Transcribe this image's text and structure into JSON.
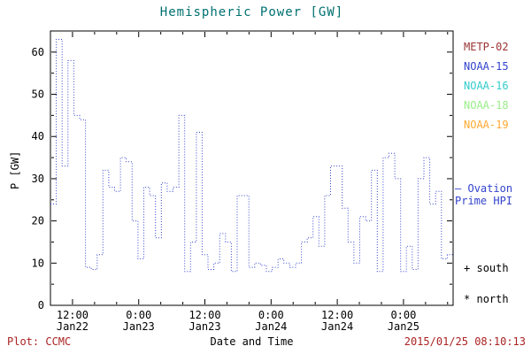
{
  "title_color": "#007070",
  "chart_data": {
    "type": "line",
    "title": "Hemispheric Power [GW]",
    "xlabel": "Date and Time",
    "ylabel": "P [GW]",
    "xlim": [
      0,
      73
    ],
    "ylim": [
      0,
      65
    ],
    "yticks": [
      0,
      10,
      20,
      30,
      40,
      50,
      60
    ],
    "xticks": [
      {
        "hour": 4,
        "time": "12:00",
        "date": "Jan22"
      },
      {
        "hour": 16,
        "time": "0:00",
        "date": "Jan23"
      },
      {
        "hour": 28,
        "time": "12:00",
        "date": "Jan23"
      },
      {
        "hour": 40,
        "time": "0:00",
        "date": "Jan24"
      },
      {
        "hour": 52,
        "time": "12:00",
        "date": "Jan24"
      },
      {
        "hour": 64,
        "time": "0:00",
        "date": "Jan25"
      }
    ],
    "grid": false,
    "legend_position": "right",
    "series": [
      {
        "name": "Ovation Prime HPI",
        "color": "#3344cc",
        "line_style": "dotted-step",
        "values": [
          24,
          63,
          33,
          58,
          45,
          44,
          9,
          8.5,
          12,
          32,
          28,
          27,
          35,
          34,
          20,
          11,
          28,
          26,
          16,
          29,
          27,
          28,
          45,
          8,
          15,
          41,
          12,
          8.5,
          10,
          17,
          15,
          8,
          26,
          26,
          9,
          10,
          9.5,
          8,
          9,
          11,
          10,
          9,
          10,
          15,
          16,
          21,
          14,
          26,
          33,
          33,
          23,
          15,
          10,
          21,
          20,
          32,
          8,
          35,
          36,
          30,
          8,
          14,
          8.5,
          30,
          35,
          24,
          27,
          11,
          12
        ]
      }
    ]
  },
  "legend": {
    "satellites": [
      {
        "label": "METP-02",
        "color": "#993333"
      },
      {
        "label": "NOAA-15",
        "color": "#3344cc"
      },
      {
        "label": "NOAA-16",
        "color": "#33cccc"
      },
      {
        "label": "NOAA-18",
        "color": "#99ee88"
      },
      {
        "label": "NOAA-19",
        "color": "#ffaa33"
      }
    ],
    "model_line": {
      "sample": "–",
      "line1": "Ovation",
      "line2": "Prime HPI",
      "color": "#3344cc"
    },
    "markers": [
      {
        "symbol": "+",
        "label": "south"
      },
      {
        "symbol": "*",
        "label": "north"
      }
    ]
  },
  "footer": {
    "left": "Plot: CCMC",
    "right": "2015/01/25 08:10:13",
    "color": "#aa2222"
  }
}
